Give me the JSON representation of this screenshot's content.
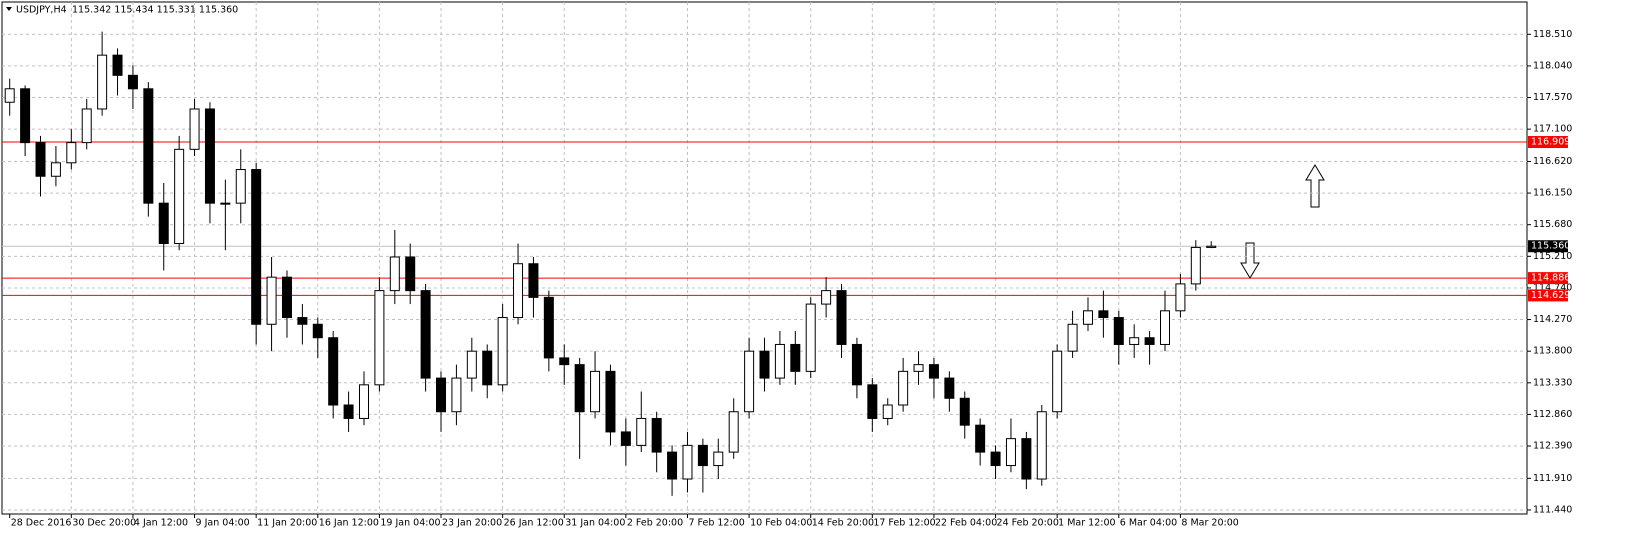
{
  "chart_data": {
    "type": "candlestick",
    "title": "USDJPY,H4",
    "info": "115.342 115.434 115.331 115.360",
    "open": [
      117.5,
      117.7,
      116.9,
      116.4,
      116.6,
      116.9,
      117.4,
      118.2,
      117.9,
      117.7,
      116.0,
      115.4,
      116.8,
      117.4,
      116.0,
      116.0,
      116.5,
      114.2,
      114.9,
      114.3,
      114.2,
      114.0,
      113.0,
      112.8,
      113.3,
      114.7,
      115.2,
      114.7,
      113.4,
      112.9,
      113.4,
      113.8,
      113.3,
      114.3,
      115.1,
      114.6,
      113.7,
      113.6,
      112.9,
      113.5,
      112.6,
      112.4,
      112.8,
      112.3,
      111.9,
      112.4,
      112.1,
      112.3,
      112.9,
      113.8,
      113.4,
      113.9,
      113.5,
      114.5,
      114.7,
      113.9,
      113.3,
      112.8,
      113.0,
      113.5,
      113.6,
      113.4,
      113.1,
      112.7,
      112.3,
      112.1,
      112.5,
      111.9,
      112.9,
      113.8,
      114.2,
      114.4,
      114.3,
      113.9,
      114.0,
      113.9,
      114.4,
      114.8,
      115.342
    ],
    "high": [
      117.85,
      117.75,
      117.0,
      116.85,
      117.1,
      117.55,
      118.55,
      118.3,
      118.05,
      117.8,
      116.3,
      117.0,
      117.55,
      117.5,
      116.35,
      116.8,
      116.6,
      115.2,
      115.0,
      114.5,
      114.3,
      114.1,
      113.2,
      113.5,
      114.9,
      115.6,
      115.4,
      114.8,
      113.5,
      113.6,
      114.0,
      113.9,
      114.5,
      115.4,
      115.2,
      114.7,
      113.9,
      113.7,
      113.8,
      113.6,
      112.8,
      113.2,
      112.9,
      112.4,
      112.6,
      112.5,
      112.5,
      113.1,
      114.0,
      114.0,
      114.1,
      114.1,
      114.6,
      114.9,
      114.8,
      114.0,
      113.4,
      113.1,
      113.7,
      113.8,
      113.7,
      113.5,
      113.2,
      112.8,
      112.4,
      112.8,
      112.6,
      113.0,
      113.9,
      114.4,
      114.6,
      114.7,
      114.4,
      114.2,
      114.1,
      114.7,
      114.95,
      115.45,
      115.434
    ],
    "low": [
      117.3,
      116.7,
      116.1,
      116.25,
      116.5,
      116.8,
      117.3,
      117.6,
      117.4,
      115.8,
      115.0,
      115.3,
      116.7,
      115.7,
      115.3,
      115.7,
      113.9,
      113.8,
      114.0,
      113.9,
      113.7,
      112.8,
      112.6,
      112.7,
      113.2,
      114.5,
      114.5,
      113.2,
      112.6,
      112.7,
      113.2,
      113.1,
      113.2,
      114.2,
      114.3,
      113.5,
      113.3,
      112.2,
      112.8,
      112.4,
      112.1,
      112.3,
      112.0,
      111.65,
      111.7,
      111.7,
      111.9,
      112.2,
      112.8,
      113.2,
      113.3,
      113.3,
      113.4,
      114.3,
      113.7,
      113.1,
      112.6,
      112.7,
      112.9,
      113.3,
      113.1,
      112.9,
      112.5,
      112.1,
      111.9,
      112.0,
      111.75,
      111.8,
      112.8,
      113.7,
      114.1,
      114.0,
      113.6,
      113.7,
      113.6,
      113.8,
      114.3,
      114.7,
      115.331
    ],
    "close": [
      117.7,
      116.9,
      116.4,
      116.6,
      116.9,
      117.4,
      118.2,
      117.9,
      117.7,
      116.0,
      115.4,
      116.8,
      117.4,
      116.0,
      116.0,
      116.5,
      114.2,
      114.9,
      114.3,
      114.2,
      114.0,
      113.0,
      112.8,
      113.3,
      114.7,
      115.2,
      114.7,
      113.4,
      112.9,
      113.4,
      113.8,
      113.3,
      114.3,
      115.1,
      114.6,
      113.7,
      113.6,
      112.9,
      113.5,
      112.6,
      112.4,
      112.8,
      112.3,
      111.9,
      112.4,
      112.1,
      112.3,
      112.9,
      113.8,
      113.4,
      113.9,
      113.5,
      114.5,
      114.7,
      113.9,
      113.3,
      112.8,
      113.0,
      113.5,
      113.6,
      113.4,
      113.1,
      112.7,
      112.3,
      112.1,
      112.5,
      111.9,
      112.9,
      113.8,
      114.2,
      114.4,
      114.3,
      113.9,
      114.0,
      113.9,
      114.4,
      114.8,
      115.342,
      115.36
    ],
    "xlim": [
      -0.5,
      98.5
    ],
    "xticks": [
      {
        "value": 0,
        "label": "28 Dec 2016"
      },
      {
        "value": 4,
        "label": "30 Dec 20:00"
      },
      {
        "value": 8,
        "label": "4 Jan 12:00"
      },
      {
        "value": 12,
        "label": "9 Jan 04:00"
      },
      {
        "value": 16,
        "label": "11 Jan 20:00"
      },
      {
        "value": 20,
        "label": "16 Jan 12:00"
      },
      {
        "value": 24,
        "label": "19 Jan 04:00"
      },
      {
        "value": 28,
        "label": "23 Jan 20:00"
      },
      {
        "value": 32,
        "label": "26 Jan 12:00"
      },
      {
        "value": 36,
        "label": "31 Jan 04:00"
      },
      {
        "value": 40,
        "label": "2 Feb 20:00"
      },
      {
        "value": 44,
        "label": "7 Feb 12:00"
      },
      {
        "value": 48,
        "label": "10 Feb 04:00"
      },
      {
        "value": 52,
        "label": "14 Feb 20:00"
      },
      {
        "value": 56,
        "label": "17 Feb 12:00"
      },
      {
        "value": 60,
        "label": "22 Feb 04:00"
      },
      {
        "value": 64,
        "label": "24 Feb 20:00"
      },
      {
        "value": 68,
        "label": "1 Mar 12:00"
      },
      {
        "value": 72,
        "label": "6 Mar 04:00"
      },
      {
        "value": 76,
        "label": "8 Mar 20:00"
      }
    ],
    "ylim": [
      111.38,
      118.99
    ],
    "yticks": [
      {
        "value": 111.44,
        "label": "111.440"
      },
      {
        "value": 111.91,
        "label": "111.910"
      },
      {
        "value": 112.39,
        "label": "112.390"
      },
      {
        "value": 112.86,
        "label": "112.860"
      },
      {
        "value": 113.33,
        "label": "113.330"
      },
      {
        "value": 113.8,
        "label": "113.800"
      },
      {
        "value": 114.27,
        "label": "114.270"
      },
      {
        "value": 114.74,
        "label": "114.740"
      },
      {
        "value": 115.21,
        "label": "115.210"
      },
      {
        "value": 115.68,
        "label": "115.680"
      },
      {
        "value": 116.15,
        "label": "116.150"
      },
      {
        "value": 116.62,
        "label": "116.620"
      },
      {
        "value": 117.1,
        "label": "117.100"
      },
      {
        "value": 117.57,
        "label": "117.570"
      },
      {
        "value": 118.04,
        "label": "118.040"
      },
      {
        "value": 118.51,
        "label": "118.510"
      }
    ],
    "levels": [
      {
        "value": 116.909,
        "color": "#ff0000"
      },
      {
        "value": 114.886,
        "color": "#ff0000"
      },
      {
        "value": 114.629,
        "color": "#ff0000"
      },
      {
        "value": 115.36,
        "label": "115.360",
        "color": "#000000"
      }
    ],
    "grid": true
  }
}
